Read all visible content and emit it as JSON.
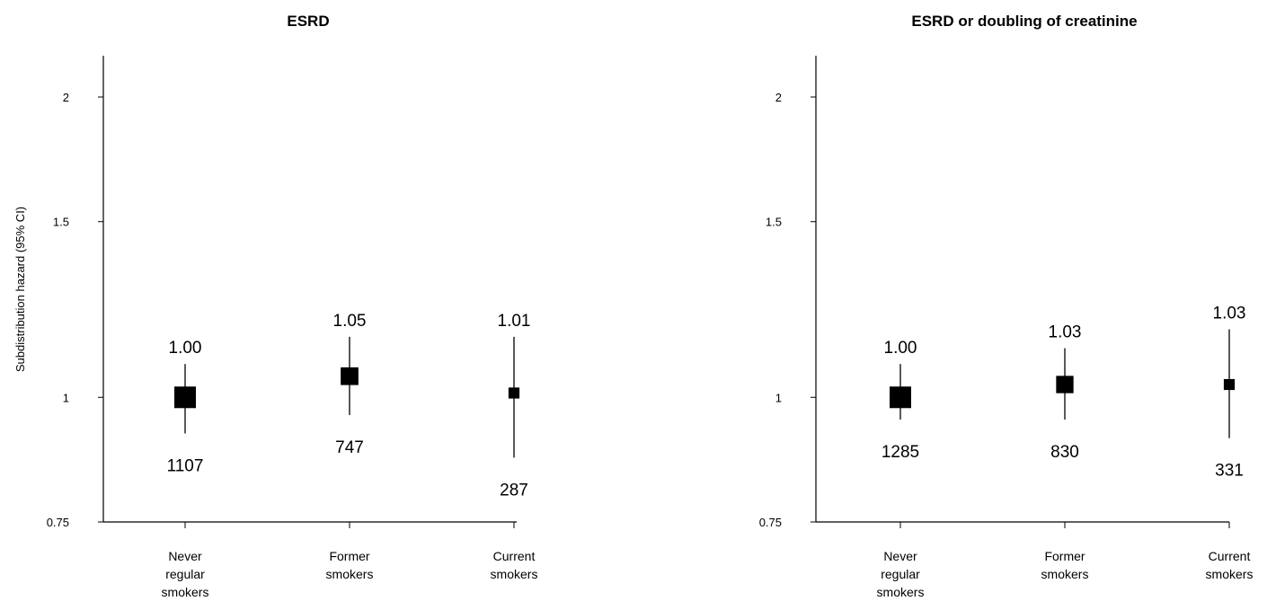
{
  "chart_data": [
    {
      "type": "scatter",
      "title": "ESRD",
      "ylabel": "Subdistribution hazard (95% CI)",
      "xlabel": "",
      "yscale": "log",
      "ylim": [
        0.75,
        2.15
      ],
      "yticks": [
        0.75,
        1,
        1.5,
        2
      ],
      "ytick_labels": [
        "0.75",
        "1",
        "1.5",
        "2"
      ],
      "categories": [
        [
          "Never",
          "regular",
          "smokers"
        ],
        [
          "Former",
          "smokers"
        ],
        [
          "Current",
          "smokers"
        ]
      ],
      "estimates": [
        1.0,
        1.05,
        1.01
      ],
      "estimate_labels": [
        "1.00",
        "1.05",
        "1.01"
      ],
      "ci_lower": [
        0.92,
        0.96,
        0.87
      ],
      "ci_upper": [
        1.08,
        1.15,
        1.15
      ],
      "counts": [
        1107,
        747,
        287
      ],
      "count_labels": [
        "1107",
        "747",
        "287"
      ],
      "marker_size": [
        1107,
        747,
        287
      ]
    },
    {
      "type": "scatter",
      "title": "ESRD or doubling of creatinine",
      "ylabel": "",
      "xlabel": "",
      "yscale": "log",
      "ylim": [
        0.75,
        2.15
      ],
      "yticks": [
        0.75,
        1,
        1.5,
        2
      ],
      "ytick_labels": [
        "0.75",
        "1",
        "1.5",
        "2"
      ],
      "categories": [
        [
          "Never",
          "regular",
          "smokers"
        ],
        [
          "Former",
          "smokers"
        ],
        [
          "Current",
          "smokers"
        ]
      ],
      "estimates": [
        1.0,
        1.03,
        1.03
      ],
      "estimate_labels": [
        "1.00",
        "1.03",
        "1.03"
      ],
      "ci_lower": [
        0.95,
        0.95,
        0.91
      ],
      "ci_upper": [
        1.08,
        1.12,
        1.17
      ],
      "counts": [
        1285,
        830,
        331
      ],
      "count_labels": [
        "1285",
        "830",
        "331"
      ],
      "marker_size": [
        1285,
        830,
        331
      ]
    }
  ]
}
